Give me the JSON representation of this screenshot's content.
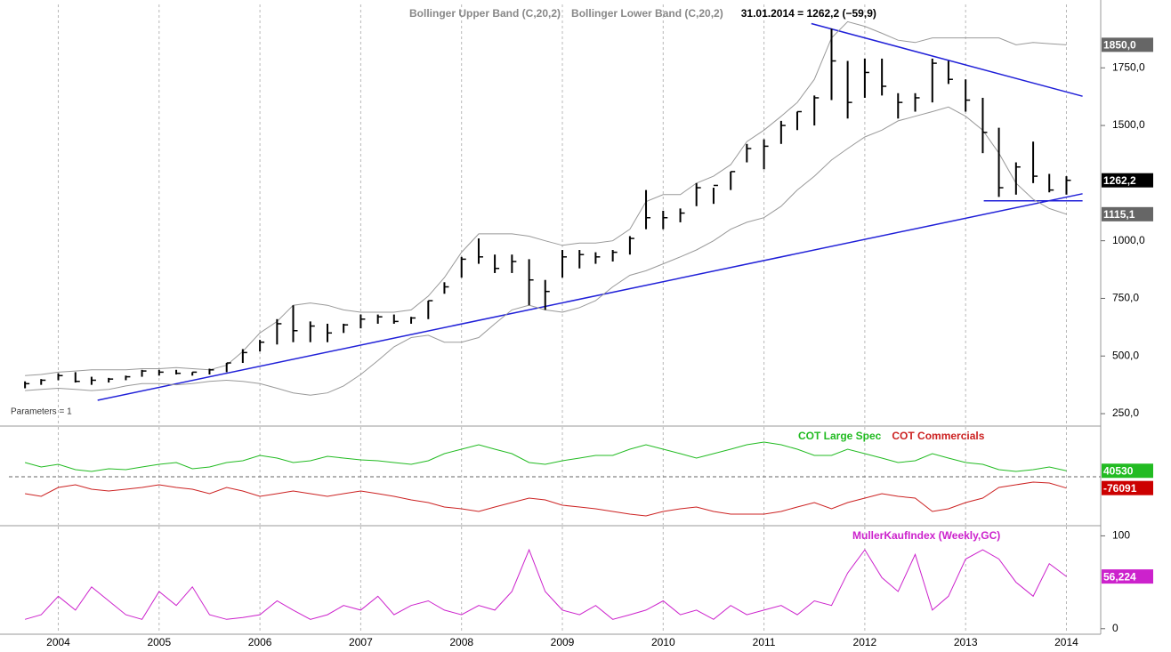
{
  "chart_data": [
    {
      "type": "ohlc",
      "status": "31.01.2014 = 1262,2 (−59,9)",
      "annotation": "Parameters = 1",
      "bar_color": "#000000",
      "last_label": "1262,2",
      "x": [
        2003.67,
        2003.83,
        2004,
        2004.17,
        2004.33,
        2004.5,
        2004.67,
        2004.83,
        2005,
        2005.17,
        2005.33,
        2005.5,
        2005.67,
        2005.83,
        2006,
        2006.17,
        2006.33,
        2006.5,
        2006.67,
        2006.83,
        2007,
        2007.17,
        2007.33,
        2007.5,
        2007.67,
        2007.83,
        2008,
        2008.17,
        2008.33,
        2008.5,
        2008.67,
        2008.83,
        2009,
        2009.17,
        2009.33,
        2009.5,
        2009.67,
        2009.83,
        2010,
        2010.17,
        2010.33,
        2010.5,
        2010.67,
        2010.83,
        2011,
        2011.17,
        2011.33,
        2011.5,
        2011.67,
        2011.83,
        2012,
        2012.17,
        2012.33,
        2012.5,
        2012.67,
        2012.83,
        2013,
        2013.17,
        2013.33,
        2013.5,
        2013.67,
        2013.83,
        2014
      ],
      "high": [
        390,
        400,
        425,
        430,
        410,
        405,
        415,
        440,
        440,
        440,
        430,
        445,
        470,
        530,
        570,
        660,
        720,
        650,
        640,
        640,
        680,
        680,
        680,
        670,
        740,
        820,
        930,
        1010,
        940,
        940,
        920,
        830,
        960,
        960,
        950,
        960,
        1020,
        1220,
        1130,
        1140,
        1250,
        1230,
        1300,
        1420,
        1440,
        1520,
        1560,
        1630,
        1920,
        1780,
        1790,
        1790,
        1640,
        1640,
        1790,
        1780,
        1700,
        1620,
        1490,
        1340,
        1430,
        1290,
        1280
      ],
      "low": [
        360,
        375,
        395,
        385,
        375,
        385,
        395,
        410,
        415,
        420,
        415,
        420,
        430,
        470,
        520,
        550,
        560,
        560,
        560,
        600,
        620,
        640,
        640,
        640,
        660,
        770,
        840,
        900,
        860,
        860,
        720,
        700,
        840,
        880,
        900,
        910,
        940,
        1050,
        1050,
        1080,
        1150,
        1160,
        1220,
        1340,
        1310,
        1420,
        1480,
        1500,
        1610,
        1530,
        1620,
        1630,
        1530,
        1560,
        1600,
        1680,
        1560,
        1380,
        1190,
        1200,
        1250,
        1210,
        1200
      ],
      "close": [
        380,
        395,
        415,
        390,
        395,
        400,
        410,
        435,
        430,
        425,
        430,
        440,
        470,
        515,
        560,
        640,
        610,
        630,
        600,
        635,
        660,
        670,
        650,
        665,
        740,
        800,
        920,
        930,
        880,
        910,
        830,
        780,
        930,
        940,
        930,
        950,
        1010,
        1100,
        1100,
        1120,
        1230,
        1240,
        1300,
        1400,
        1410,
        1500,
        1560,
        1620,
        1780,
        1600,
        1730,
        1670,
        1600,
        1620,
        1770,
        1700,
        1610,
        1470,
        1230,
        1320,
        1280,
        1220,
        1262.2
      ],
      "series": [
        {
          "name": "Bollinger Upper Band (C,20,2)",
          "color": "#999999",
          "box_color": "#666666",
          "last_label": "1850,0",
          "values": [
            415,
            420,
            430,
            435,
            440,
            440,
            440,
            445,
            445,
            450,
            445,
            440,
            460,
            520,
            600,
            650,
            720,
            730,
            720,
            700,
            690,
            690,
            690,
            700,
            760,
            840,
            950,
            1030,
            1030,
            1030,
            1020,
            1000,
            980,
            990,
            990,
            1000,
            1050,
            1170,
            1200,
            1200,
            1250,
            1280,
            1330,
            1430,
            1480,
            1540,
            1600,
            1700,
            1880,
            1950,
            1930,
            1900,
            1870,
            1860,
            1880,
            1880,
            1880,
            1880,
            1880,
            1850,
            1860,
            1855,
            1850
          ]
        },
        {
          "name": "Bollinger Lower Band (C,20,2)",
          "color": "#999999",
          "box_color": "#666666",
          "last_label": "1115,1",
          "values": [
            350,
            355,
            360,
            355,
            350,
            355,
            370,
            380,
            380,
            375,
            380,
            390,
            395,
            390,
            380,
            360,
            340,
            330,
            340,
            370,
            420,
            480,
            540,
            580,
            590,
            560,
            560,
            580,
            640,
            700,
            720,
            700,
            690,
            710,
            740,
            800,
            850,
            870,
            900,
            930,
            960,
            1000,
            1050,
            1080,
            1100,
            1150,
            1220,
            1280,
            1350,
            1400,
            1450,
            1480,
            1520,
            1540,
            1560,
            1580,
            1540,
            1480,
            1380,
            1250,
            1180,
            1140,
            1115.1
          ]
        }
      ],
      "trendline_color": "#2020d8",
      "trendlines": [
        {
          "x": [
            2004.39,
            2014.16
          ],
          "values": [
            308,
            1204
          ]
        },
        {
          "x": [
            2011.47,
            2014.16
          ],
          "values": [
            1942,
            1627
          ]
        },
        {
          "x": [
            2013.18,
            2014.16
          ],
          "values": [
            1173,
            1173
          ]
        }
      ],
      "xlim": [
        2003.51,
        2014.34
      ],
      "xticks": [
        2004,
        2005,
        2006,
        2007,
        2008,
        2009,
        2010,
        2011,
        2012,
        2013,
        2014
      ],
      "ylim": [
        200,
        2025
      ],
      "yticks": [
        {
          "value": 250,
          "label": "250,0"
        },
        {
          "value": 500,
          "label": "500,0"
        },
        {
          "value": 750,
          "label": "750,0"
        },
        {
          "value": 1000,
          "label": "1000,0"
        },
        {
          "value": 1500,
          "label": "1500,0"
        },
        {
          "value": 1750,
          "label": "1750,0"
        }
      ]
    },
    {
      "type": "line",
      "x": [
        2003.67,
        2003.83,
        2004,
        2004.17,
        2004.33,
        2004.5,
        2004.67,
        2004.83,
        2005,
        2005.17,
        2005.33,
        2005.5,
        2005.67,
        2005.83,
        2006,
        2006.17,
        2006.33,
        2006.5,
        2006.67,
        2006.83,
        2007,
        2007.17,
        2007.33,
        2007.5,
        2007.67,
        2007.83,
        2008,
        2008.17,
        2008.33,
        2008.5,
        2008.67,
        2008.83,
        2009,
        2009.17,
        2009.33,
        2009.5,
        2009.67,
        2009.83,
        2010,
        2010.17,
        2010.33,
        2010.5,
        2010.67,
        2010.83,
        2011,
        2011.17,
        2011.33,
        2011.5,
        2011.67,
        2011.83,
        2012,
        2012.17,
        2012.33,
        2012.5,
        2012.67,
        2012.83,
        2013,
        2013.17,
        2013.33,
        2013.5,
        2013.67,
        2013.83,
        2014
      ],
      "series": [
        {
          "name": "COT Large Spec",
          "color": "#22bb22",
          "box_color": "#22bb22",
          "last_label": "40530",
          "values": [
            96000,
            66000,
            84000,
            48000,
            36000,
            54000,
            48000,
            66000,
            84000,
            96000,
            54000,
            66000,
            96000,
            108000,
            144000,
            126000,
            96000,
            108000,
            138000,
            126000,
            114000,
            108000,
            96000,
            84000,
            108000,
            156000,
            186000,
            216000,
            186000,
            156000,
            96000,
            84000,
            108000,
            126000,
            144000,
            144000,
            186000,
            216000,
            186000,
            156000,
            126000,
            156000,
            186000,
            216000,
            234000,
            216000,
            186000,
            144000,
            144000,
            186000,
            156000,
            126000,
            96000,
            108000,
            156000,
            126000,
            96000,
            84000,
            48000,
            36000,
            48000,
            66000,
            40530
          ]
        },
        {
          "name": "COT Commercials",
          "color": "#cc2222",
          "box_color": "#cc0000",
          "last_label": "-76091",
          "values": [
            -114000,
            -132000,
            -72000,
            -54000,
            -84000,
            -96000,
            -84000,
            -72000,
            -54000,
            -72000,
            -84000,
            -114000,
            -72000,
            -96000,
            -132000,
            -114000,
            -96000,
            -114000,
            -132000,
            -114000,
            -96000,
            -114000,
            -132000,
            -156000,
            -174000,
            -204000,
            -216000,
            -234000,
            -204000,
            -174000,
            -144000,
            -156000,
            -192000,
            -204000,
            -216000,
            -234000,
            -252000,
            -264000,
            -234000,
            -216000,
            -204000,
            -234000,
            -252000,
            -252000,
            -252000,
            -234000,
            -204000,
            -174000,
            -216000,
            -174000,
            -144000,
            -114000,
            -132000,
            -144000,
            -234000,
            -216000,
            -174000,
            -144000,
            -72000,
            -54000,
            -36000,
            -42000,
            -76091
          ]
        }
      ],
      "reference_line": 0,
      "xlim": [
        2003.51,
        2014.34
      ],
      "xticks": [
        2004,
        2005,
        2006,
        2007,
        2008,
        2009,
        2010,
        2011,
        2012,
        2013,
        2014
      ],
      "ylim": [
        -324000,
        336000
      ]
    },
    {
      "type": "line",
      "x": [
        2003.67,
        2003.83,
        2004,
        2004.17,
        2004.33,
        2004.5,
        2004.67,
        2004.83,
        2005,
        2005.17,
        2005.33,
        2005.5,
        2005.67,
        2005.83,
        2006,
        2006.17,
        2006.33,
        2006.5,
        2006.67,
        2006.83,
        2007,
        2007.17,
        2007.33,
        2007.5,
        2007.67,
        2007.83,
        2008,
        2008.17,
        2008.33,
        2008.5,
        2008.67,
        2008.83,
        2009,
        2009.17,
        2009.33,
        2009.5,
        2009.67,
        2009.83,
        2010,
        2010.17,
        2010.33,
        2010.5,
        2010.67,
        2010.83,
        2011,
        2011.17,
        2011.33,
        2011.5,
        2011.67,
        2011.83,
        2012,
        2012.17,
        2012.33,
        2012.5,
        2012.67,
        2012.83,
        2013,
        2013.17,
        2013.33,
        2013.5,
        2013.67,
        2013.83,
        2014
      ],
      "series": [
        {
          "name": "MullerKaufIndex (Weekly,GC)",
          "color": "#cc22cc",
          "box_color": "#cc22cc",
          "last_label": "56,224",
          "values": [
            10,
            15,
            35,
            20,
            45,
            30,
            15,
            10,
            40,
            25,
            45,
            15,
            10,
            12,
            15,
            30,
            20,
            10,
            15,
            25,
            20,
            35,
            15,
            25,
            30,
            20,
            15,
            25,
            20,
            40,
            85,
            40,
            20,
            15,
            25,
            10,
            15,
            20,
            30,
            15,
            20,
            10,
            25,
            15,
            20,
            25,
            15,
            30,
            25,
            60,
            85,
            55,
            40,
            80,
            20,
            35,
            75,
            85,
            75,
            50,
            35,
            70,
            56.224
          ]
        }
      ],
      "xlim": [
        2003.51,
        2014.34
      ],
      "xticks": [
        2004,
        2005,
        2006,
        2007,
        2008,
        2009,
        2010,
        2011,
        2012,
        2013,
        2014
      ],
      "ylim": [
        -5,
        110
      ],
      "yticks": [
        0,
        100
      ]
    }
  ]
}
